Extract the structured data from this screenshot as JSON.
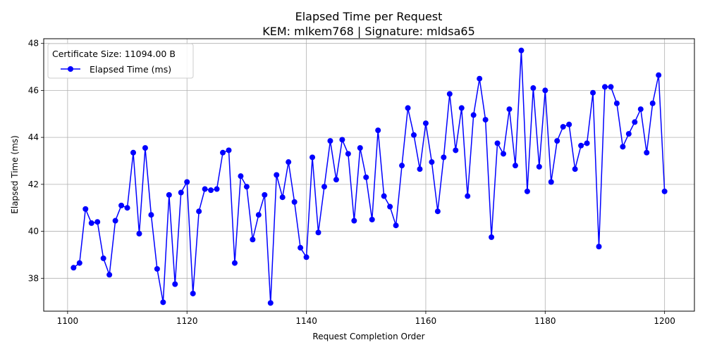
{
  "chart_data": {
    "type": "line",
    "title": "Elapsed Time per Request",
    "subtitle": "KEM: mlkem768 | Signature: mldsa65",
    "xlabel": "Request Completion Order",
    "ylabel": "Elapsed Time (ms)",
    "xlim": [
      1096,
      1205
    ],
    "ylim": [
      36.6,
      48.2
    ],
    "xticks": [
      1100,
      1120,
      1140,
      1160,
      1180,
      1200
    ],
    "yticks": [
      38,
      40,
      42,
      44,
      46,
      48
    ],
    "grid": true,
    "legend": {
      "placement": "top-left",
      "title": "Certificate Size: 11094.00 B",
      "entries": [
        "Elapsed Time (ms)"
      ]
    },
    "colors": {
      "series": "#0000ff",
      "grid": "#b0b0b0"
    },
    "series": [
      {
        "name": "Elapsed Time (ms)",
        "x": [
          1101,
          1102,
          1103,
          1104,
          1105,
          1106,
          1107,
          1108,
          1109,
          1110,
          1111,
          1112,
          1113,
          1114,
          1115,
          1116,
          1117,
          1118,
          1119,
          1120,
          1121,
          1122,
          1123,
          1124,
          1125,
          1126,
          1127,
          1128,
          1129,
          1130,
          1131,
          1132,
          1133,
          1134,
          1135,
          1136,
          1137,
          1138,
          1139,
          1140,
          1141,
          1142,
          1143,
          1144,
          1145,
          1146,
          1147,
          1148,
          1149,
          1150,
          1151,
          1152,
          1153,
          1154,
          1155,
          1156,
          1157,
          1158,
          1159,
          1160,
          1161,
          1162,
          1163,
          1164,
          1165,
          1166,
          1167,
          1168,
          1169,
          1170,
          1171,
          1172,
          1173,
          1174,
          1175,
          1176,
          1177,
          1178,
          1179,
          1180,
          1181,
          1182,
          1183,
          1184,
          1185,
          1186,
          1187,
          1188,
          1189,
          1190,
          1191,
          1192,
          1193,
          1194,
          1195,
          1196,
          1197,
          1198,
          1199,
          1200
        ],
        "y": [
          38.45,
          38.65,
          40.95,
          40.35,
          40.4,
          38.85,
          38.15,
          40.45,
          41.1,
          41.0,
          43.35,
          39.9,
          43.55,
          40.7,
          38.4,
          36.98,
          41.55,
          37.75,
          41.65,
          42.1,
          37.35,
          40.85,
          41.8,
          41.75,
          41.8,
          43.35,
          43.45,
          38.65,
          42.35,
          41.9,
          39.65,
          40.7,
          41.55,
          36.95,
          42.4,
          41.45,
          42.95,
          41.25,
          39.3,
          38.9,
          43.15,
          39.95,
          41.9,
          43.85,
          42.2,
          43.9,
          43.3,
          40.45,
          43.55,
          42.3,
          40.5,
          44.3,
          41.5,
          41.05,
          40.25,
          42.8,
          45.25,
          44.1,
          42.65,
          44.6,
          42.95,
          40.85,
          43.15,
          45.85,
          43.45,
          45.25,
          41.5,
          44.95,
          46.5,
          44.75,
          39.75,
          43.75,
          43.3,
          45.2,
          42.8,
          47.7,
          41.7,
          46.1,
          42.75,
          46.0,
          42.1,
          43.85,
          44.45,
          44.55,
          42.65,
          43.65,
          43.75,
          45.9,
          39.35,
          46.15,
          46.15,
          45.45,
          43.6,
          44.15,
          44.65,
          45.2,
          43.35,
          45.45,
          46.65,
          41.7
        ]
      }
    ]
  }
}
